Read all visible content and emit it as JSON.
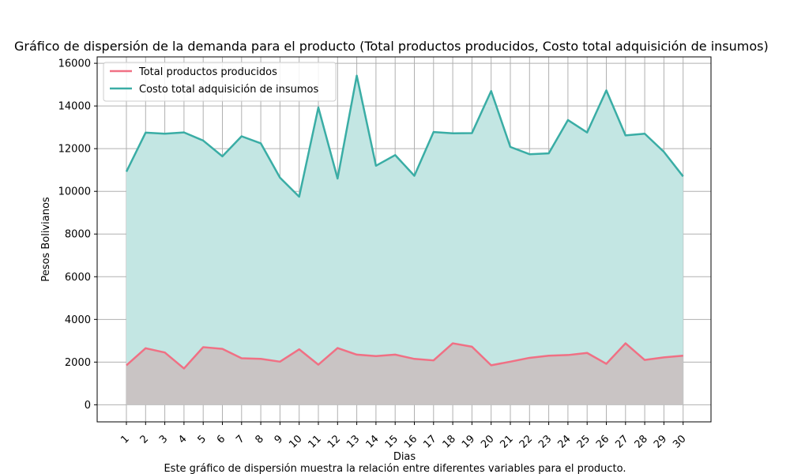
{
  "chart_data": {
    "type": "area",
    "title": "Gráfico de dispersión de la demanda para el producto (Total productos producidos, Costo total adquisición de insumos)",
    "xlabel": "Dias",
    "ylabel": "Pesos Bolivianos",
    "caption": "Este gráfico de dispersión muestra la relación entre diferentes variables para el producto.",
    "x": [
      "1",
      "2",
      "3",
      "4",
      "5",
      "6",
      "7",
      "8",
      "9",
      "10",
      "11",
      "12",
      "13",
      "14",
      "15",
      "16",
      "17",
      "18",
      "19",
      "20",
      "21",
      "22",
      "23",
      "24",
      "25",
      "26",
      "27",
      "28",
      "29",
      "30"
    ],
    "ylim": [
      -800,
      16300
    ],
    "yticks": [
      0,
      2000,
      4000,
      6000,
      8000,
      10000,
      12000,
      14000,
      16000
    ],
    "grid": true,
    "legend_position": "top-left",
    "series": [
      {
        "name": "Total productos producidos",
        "color": "#f07084",
        "fill": "#c9c4c4",
        "values": [
          1850,
          2650,
          2450,
          1700,
          2700,
          2620,
          2180,
          2150,
          2020,
          2600,
          1880,
          2660,
          2350,
          2280,
          2350,
          2150,
          2080,
          2880,
          2720,
          1850,
          2020,
          2200,
          2300,
          2330,
          2430,
          1920,
          2880,
          2100,
          2220,
          2300
        ]
      },
      {
        "name": "Costo total adquisición de insumos",
        "color": "#3aada5",
        "fill": "#c3e6e3",
        "values": [
          10920,
          12750,
          12700,
          12760,
          12380,
          11640,
          12580,
          12250,
          10640,
          9750,
          13930,
          10600,
          15420,
          11200,
          11700,
          10730,
          12780,
          12720,
          12730,
          14700,
          12080,
          11740,
          11780,
          13340,
          12760,
          14730,
          12620,
          12700,
          11850,
          10700
        ]
      }
    ]
  }
}
